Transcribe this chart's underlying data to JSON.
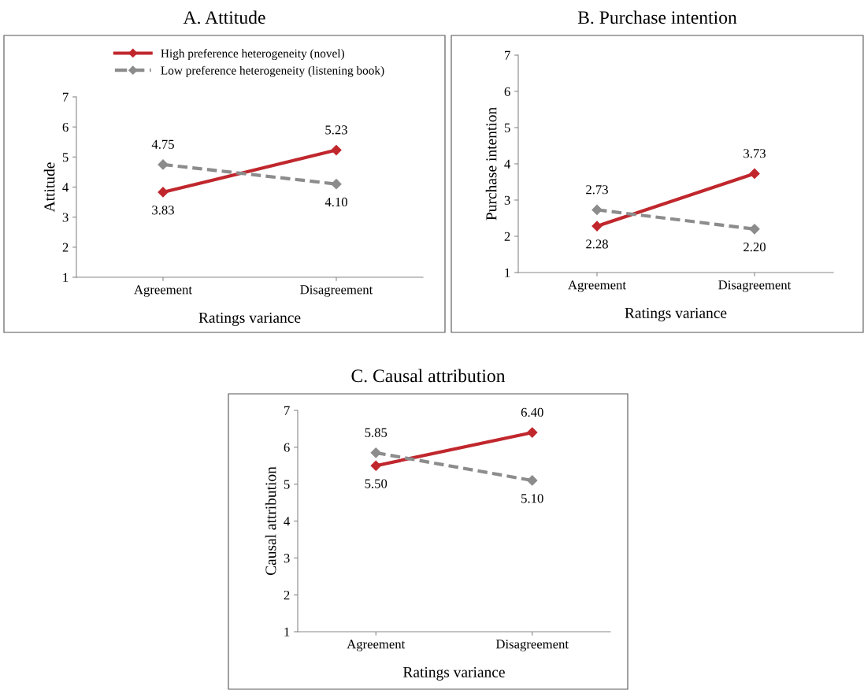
{
  "chart_data": [
    {
      "type": "line",
      "title": "A. Attitude",
      "xlabel": "Ratings variance",
      "ylabel": "Attitude",
      "categories": [
        "Agreement",
        "Disagreement"
      ],
      "ylim": [
        1,
        7
      ],
      "yticks": [
        1,
        2,
        3,
        4,
        5,
        6,
        7
      ],
      "grid": false,
      "legend": "top",
      "marker": "diamond",
      "series": [
        {
          "name": "High preference heterogeneity (novel)",
          "color": "#c0272d",
          "values": [
            3.83,
            5.23
          ],
          "value_labels": [
            "3.83",
            "5.23"
          ],
          "line_style": "solid"
        },
        {
          "name": "Low preference heterogeneity (listening book)",
          "color": "#8c8c8c",
          "values": [
            4.75,
            4.1
          ],
          "value_labels": [
            "4.75",
            "4.10"
          ],
          "line_style": "dashed"
        }
      ]
    },
    {
      "type": "line",
      "title": "B. Purchase intention",
      "xlabel": "Ratings variance",
      "ylabel": "Purchase intention",
      "categories": [
        "Agreement",
        "Disagreement"
      ],
      "ylim": [
        1,
        7
      ],
      "yticks": [
        1,
        2,
        3,
        4,
        5,
        6,
        7
      ],
      "grid": false,
      "marker": "diamond",
      "series": [
        {
          "color": "#c0272d",
          "values": [
            2.28,
            3.73
          ],
          "value_labels": [
            "2.28",
            "3.73"
          ],
          "line_style": "solid"
        },
        {
          "color": "#8c8c8c",
          "values": [
            2.73,
            2.2
          ],
          "value_labels": [
            "2.73",
            "2.20"
          ],
          "line_style": "dashed"
        }
      ]
    },
    {
      "type": "line",
      "title": "C. Causal attribution",
      "xlabel": "Ratings variance",
      "ylabel": "Causal attribution",
      "categories": [
        "Agreement",
        "Disagreement"
      ],
      "ylim": [
        1,
        7
      ],
      "yticks": [
        1,
        2,
        3,
        4,
        5,
        6,
        7
      ],
      "grid": false,
      "marker": "diamond",
      "series": [
        {
          "color": "#c0272d",
          "values": [
            5.5,
            6.4
          ],
          "value_labels": [
            "5.50",
            "6.40"
          ],
          "line_style": "solid"
        },
        {
          "color": "#8c8c8c",
          "values": [
            5.85,
            5.1
          ],
          "value_labels": [
            "5.85",
            "5.10"
          ],
          "line_style": "dashed"
        }
      ]
    }
  ]
}
